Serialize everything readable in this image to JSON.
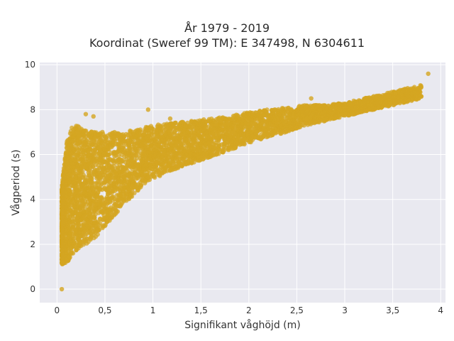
{
  "chart_data": {
    "type": "scatter",
    "title": "År 1979 - 2019",
    "subtitle": "Koordinat (Sweref 99 TM): E 347498, N 6304611",
    "xlabel": "Signifikant våghöjd (m)",
    "ylabel": "Vågperiod (s)",
    "xlim": [
      -0.18,
      4.05
    ],
    "ylim": [
      -0.6,
      10.1
    ],
    "xticks": [
      0,
      0.5,
      1,
      1.5,
      2,
      2.5,
      3,
      3.5,
      4
    ],
    "xtick_labels": [
      "0",
      "0,5",
      "1",
      "1,5",
      "2",
      "2,5",
      "3",
      "3,5",
      "4"
    ],
    "yticks": [
      0,
      2,
      4,
      6,
      8,
      10
    ],
    "ytick_labels": [
      "0",
      "2",
      "4",
      "6",
      "8",
      "10"
    ],
    "grid": true,
    "marker_color": "#d4a521",
    "background": "#e9e9f0",
    "envelope": {
      "x": [
        0.05,
        0.1,
        0.15,
        0.2,
        0.3,
        0.4,
        0.5,
        0.6,
        0.7,
        0.8,
        0.9,
        1.0,
        1.2,
        1.4,
        1.6,
        1.8,
        2.0,
        2.2,
        2.4,
        2.6,
        2.8,
        3.0,
        3.2,
        3.4,
        3.6,
        3.8
      ],
      "y_low": [
        1.1,
        1.2,
        1.4,
        1.7,
        2.0,
        2.3,
        2.8,
        3.3,
        3.8,
        4.2,
        4.6,
        4.9,
        5.3,
        5.6,
        5.9,
        6.2,
        6.5,
        6.8,
        7.0,
        7.3,
        7.5,
        7.7,
        7.9,
        8.1,
        8.3,
        8.5
      ],
      "y_high": [
        4.5,
        6.6,
        7.2,
        7.3,
        7.1,
        7.0,
        7.0,
        7.0,
        7.0,
        7.1,
        7.2,
        7.3,
        7.4,
        7.5,
        7.6,
        7.7,
        7.9,
        8.0,
        8.1,
        8.2,
        8.2,
        8.3,
        8.5,
        8.7,
        8.9,
        9.1
      ]
    },
    "outliers": [
      {
        "x": 0.05,
        "y": 0.0
      },
      {
        "x": 0.95,
        "y": 8.0
      },
      {
        "x": 3.87,
        "y": 9.6
      },
      {
        "x": 2.65,
        "y": 8.5
      },
      {
        "x": 3.42,
        "y": 8.65
      },
      {
        "x": 0.38,
        "y": 7.7
      },
      {
        "x": 0.3,
        "y": 7.8
      },
      {
        "x": 1.18,
        "y": 7.6
      }
    ]
  }
}
